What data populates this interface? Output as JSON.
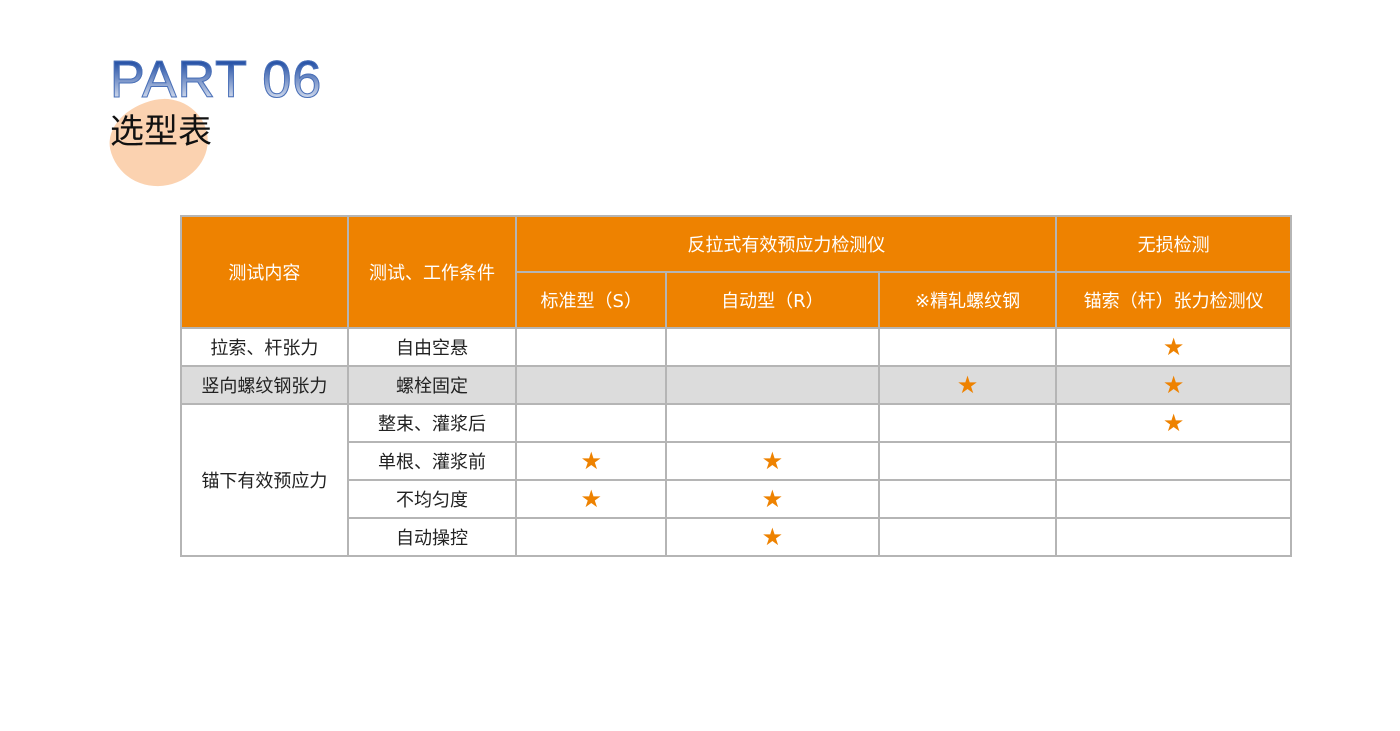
{
  "header": {
    "part": "PART 06",
    "title": "选型表"
  },
  "table": {
    "col1": "测试内容",
    "col2": "测试、工作条件",
    "group1": "反拉式有效预应力检测仪",
    "group2": "无损检测",
    "sub": [
      "标准型（S）",
      "自动型（R）",
      "※精轧螺纹钢",
      "锚索（杆）张力检测仪"
    ],
    "rows": [
      {
        "content": "拉索、杆张力",
        "condition": "自由空悬",
        "marks": [
          false,
          false,
          false,
          true
        ]
      },
      {
        "content": "竖向螺纹钢张力",
        "condition": "螺栓固定",
        "marks": [
          false,
          false,
          true,
          true
        ]
      },
      {
        "content": "锚下有效预应力",
        "condition": "整束、灌浆后",
        "marks": [
          false,
          false,
          false,
          true
        ]
      },
      {
        "content": "",
        "condition": "单根、灌浆前",
        "marks": [
          true,
          true,
          false,
          false
        ]
      },
      {
        "content": "",
        "condition": "不均匀度",
        "marks": [
          true,
          true,
          false,
          false
        ]
      },
      {
        "content": "",
        "condition": "自动操控",
        "marks": [
          false,
          true,
          false,
          false
        ]
      }
    ],
    "star": "★",
    "accent": "#ee8200"
  }
}
